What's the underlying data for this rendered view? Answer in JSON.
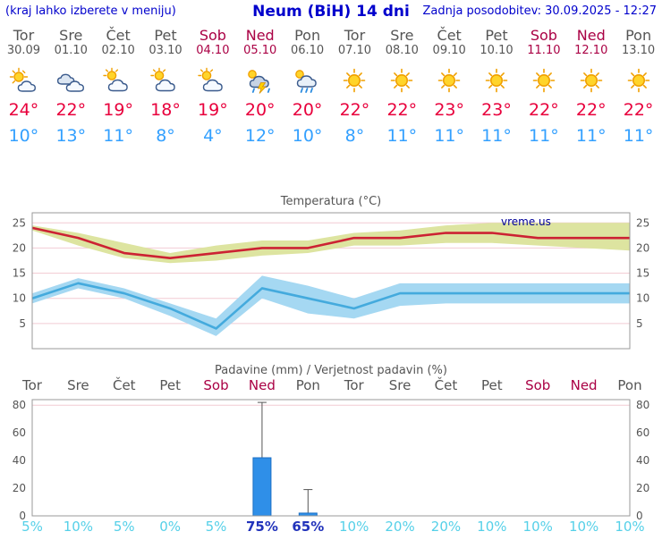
{
  "header": {
    "left_note": "(kraj lahko izberete v meniju)",
    "title": "Neum (BiH) 14 dni",
    "updated": "Zadnja posodobitev: 30.09.2025 - 12:27"
  },
  "colors": {
    "link_blue": "#0000cc",
    "day_gray": "#555555",
    "weekend_red": "#aa0044",
    "tmax_red": "#e8003c",
    "tmin_blue": "#33a0ff",
    "watermark_navy": "#000099",
    "prob_cyan": "#55d0e8",
    "prob_navy": "#2233bb"
  },
  "days": [
    {
      "name": "Tor",
      "date": "30.09",
      "weekend": false,
      "icon": "partly-sunny",
      "tmax": "24°",
      "tmin": "10°"
    },
    {
      "name": "Sre",
      "date": "01.10",
      "weekend": false,
      "icon": "cloudy",
      "tmax": "22°",
      "tmin": "13°"
    },
    {
      "name": "Čet",
      "date": "02.10",
      "weekend": false,
      "icon": "cloud-sun",
      "tmax": "19°",
      "tmin": "11°"
    },
    {
      "name": "Pet",
      "date": "03.10",
      "weekend": false,
      "icon": "cloud-sun",
      "tmax": "18°",
      "tmin": "8°"
    },
    {
      "name": "Sob",
      "date": "04.10",
      "weekend": true,
      "icon": "cloud-sun",
      "tmax": "19°",
      "tmin": "4°"
    },
    {
      "name": "Ned",
      "date": "05.10",
      "weekend": true,
      "icon": "thunderstorm",
      "tmax": "20°",
      "tmin": "12°"
    },
    {
      "name": "Pon",
      "date": "06.10",
      "weekend": false,
      "icon": "rain-sun",
      "tmax": "20°",
      "tmin": "10°"
    },
    {
      "name": "Tor",
      "date": "07.10",
      "weekend": false,
      "icon": "sunny",
      "tmax": "22°",
      "tmin": "8°"
    },
    {
      "name": "Sre",
      "date": "08.10",
      "weekend": false,
      "icon": "sunny",
      "tmax": "22°",
      "tmin": "11°"
    },
    {
      "name": "Čet",
      "date": "09.10",
      "weekend": false,
      "icon": "sunny",
      "tmax": "23°",
      "tmin": "11°"
    },
    {
      "name": "Pet",
      "date": "10.10",
      "weekend": false,
      "icon": "sunny",
      "tmax": "23°",
      "tmin": "11°"
    },
    {
      "name": "Sob",
      "date": "11.10",
      "weekend": true,
      "icon": "sunny",
      "tmax": "22°",
      "tmin": "11°"
    },
    {
      "name": "Ned",
      "date": "12.10",
      "weekend": true,
      "icon": "sunny",
      "tmax": "22°",
      "tmin": "11°"
    },
    {
      "name": "Pon",
      "date": "13.10",
      "weekend": false,
      "icon": "sunny",
      "tmax": "22°",
      "tmin": "11°"
    }
  ],
  "chart_data": [
    {
      "type": "line",
      "title": "Temperatura (°C)",
      "watermark": "vreme.us",
      "ylim": [
        0,
        27
      ],
      "yticks": [
        5,
        10,
        15,
        20,
        25
      ],
      "grid": true,
      "series": [
        {
          "name": "max-temp",
          "line_color": "#cc2233",
          "band_color": "#dde4a0",
          "values": [
            24,
            22,
            19,
            18,
            19,
            20,
            20,
            22,
            22,
            23,
            23,
            22,
            22,
            22
          ],
          "band_upper": [
            24.5,
            23,
            21,
            19,
            20.5,
            21.5,
            21.5,
            23,
            23.5,
            24.5,
            25,
            25,
            25,
            25
          ],
          "band_lower": [
            23.5,
            20.5,
            18,
            17,
            17.5,
            18.5,
            19,
            20.5,
            20.5,
            21,
            21,
            20.5,
            20,
            19.5
          ]
        },
        {
          "name": "min-temp",
          "line_color": "#44aadd",
          "band_color": "#a5d8f2",
          "values": [
            10,
            13,
            11,
            8,
            4,
            12,
            10,
            8,
            11,
            11,
            11,
            11,
            11,
            11
          ],
          "band_upper": [
            11,
            14,
            12,
            9,
            6,
            14.5,
            12.5,
            10,
            13,
            13,
            13,
            13,
            13,
            13
          ],
          "band_lower": [
            9,
            12,
            10,
            6.5,
            2.5,
            10,
            7,
            6,
            8.5,
            9,
            9,
            9,
            9,
            9
          ]
        }
      ]
    },
    {
      "type": "bar",
      "title": "Padavine (mm) / Verjetnost padavin (%)",
      "categories": [
        "Tor",
        "Sre",
        "Čet",
        "Pet",
        "Sob",
        "Ned",
        "Pon",
        "Tor",
        "Sre",
        "Čet",
        "Pet",
        "Sob",
        "Ned",
        "Pon"
      ],
      "weekend_flags": [
        false,
        false,
        false,
        false,
        true,
        true,
        false,
        false,
        false,
        false,
        false,
        true,
        true,
        false
      ],
      "values_mm": [
        0,
        0,
        0,
        0,
        0,
        42,
        2,
        0,
        0,
        0,
        0,
        0,
        0,
        0
      ],
      "whisker_max_mm": [
        0,
        0,
        0,
        0,
        0,
        82,
        19,
        0,
        0,
        0,
        0,
        0,
        0,
        0
      ],
      "probabilities": [
        "5%",
        "10%",
        "5%",
        "0%",
        "5%",
        "75%",
        "65%",
        "10%",
        "20%",
        "20%",
        "10%",
        "10%",
        "10%",
        "10%"
      ],
      "highlight_indices": [
        5,
        6
      ],
      "bar_color": "#2f8fe8",
      "ylim": [
        0,
        84
      ],
      "yticks": [
        0,
        20,
        40,
        60,
        80
      ]
    }
  ]
}
